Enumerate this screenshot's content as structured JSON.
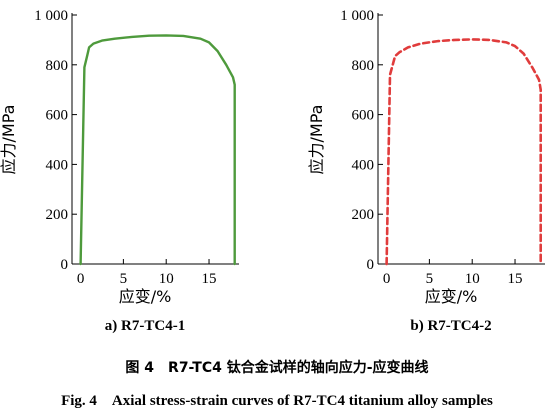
{
  "chart_data": [
    {
      "type": "line",
      "panel_label": "a) R7-TC4-1",
      "xlabel": "应变/%",
      "ylabel": "应力/MPa",
      "xlim": [
        -1,
        18.5
      ],
      "ylim": [
        0,
        1000
      ],
      "xticks": [
        "0",
        "5",
        "10",
        "15"
      ],
      "yticks": [
        "0",
        "200",
        "400",
        "600",
        "800",
        "1 000"
      ],
      "series": [
        {
          "style": "solid",
          "color": "#4e9a3c",
          "x": [
            0,
            0.45,
            0.8,
            1.0,
            1.5,
            2.5,
            4,
            6,
            8,
            10,
            12,
            14,
            15,
            16,
            17,
            17.8,
            18.0,
            18.0
          ],
          "y": [
            0,
            790,
            840,
            870,
            885,
            897,
            905,
            912,
            917,
            918,
            916,
            905,
            890,
            855,
            800,
            750,
            720,
            0
          ]
        }
      ]
    },
    {
      "type": "line",
      "panel_label": "b) R7-TC4-2",
      "xlabel": "应变/%",
      "ylabel": "应力/MPa",
      "xlim": [
        -1,
        18.5
      ],
      "ylim": [
        0,
        1000
      ],
      "xticks": [
        "0",
        "5",
        "10",
        "15"
      ],
      "yticks": [
        "0",
        "200",
        "400",
        "600",
        "800",
        "1 000"
      ],
      "series": [
        {
          "style": "dashed",
          "color": "#e03c3c",
          "x": [
            0,
            0.4,
            0.8,
            1.0,
            1.5,
            2.5,
            4,
            6,
            8,
            10,
            12,
            14,
            15,
            16,
            17,
            17.8,
            18.0,
            18.0
          ],
          "y": [
            0,
            760,
            810,
            835,
            850,
            870,
            885,
            895,
            900,
            902,
            900,
            890,
            875,
            845,
            790,
            740,
            700,
            0
          ]
        }
      ]
    }
  ],
  "caption_cn": "图 4　R7-TC4 钛合金试样的轴向应力-应变曲线",
  "caption_en": "Fig. 4　Axial stress-strain curves of R7-TC4 titanium alloy samples"
}
